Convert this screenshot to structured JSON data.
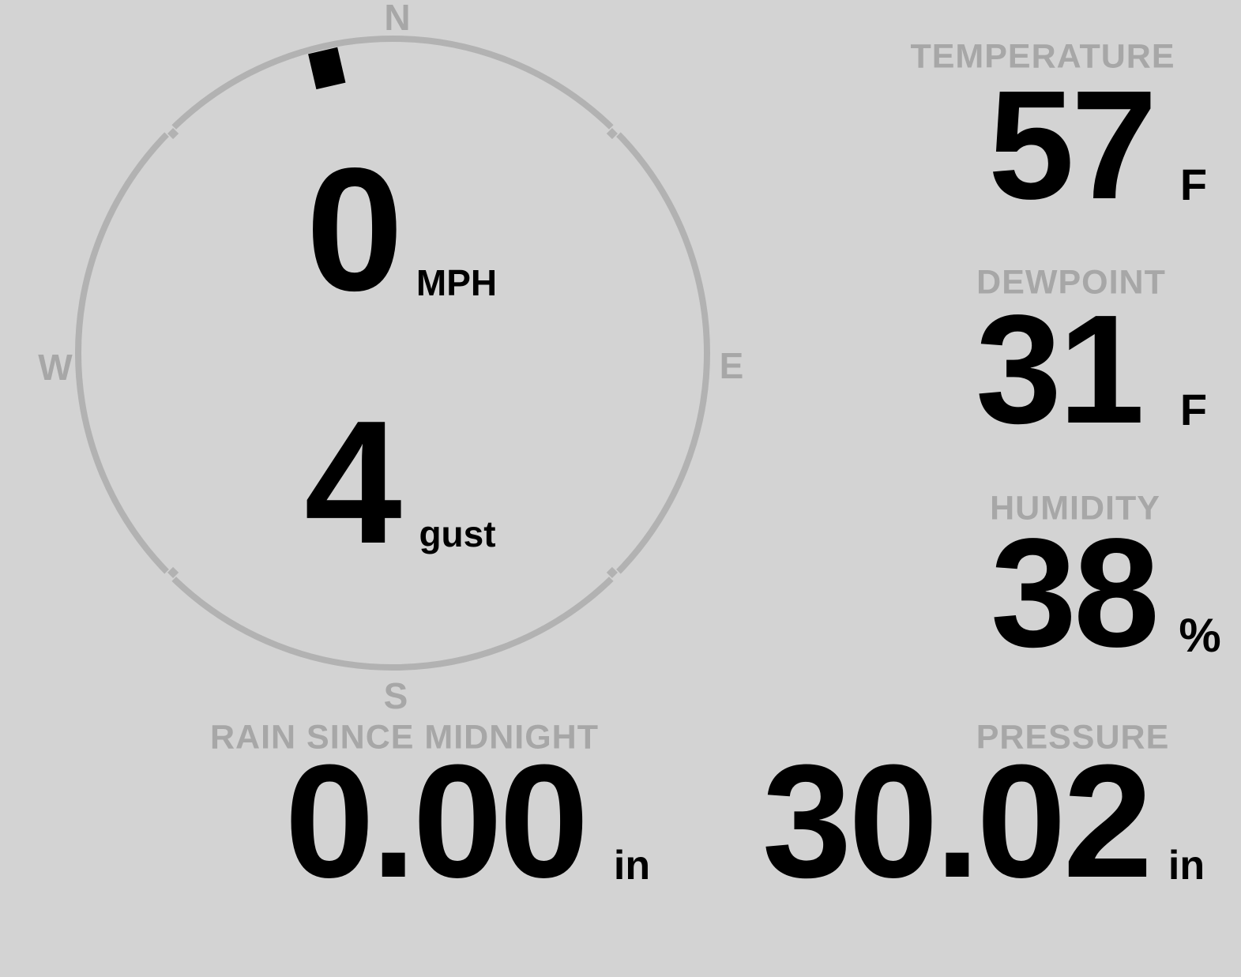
{
  "theme": {
    "background_color": "#d3d3d3",
    "label_color": "#a7a7a7",
    "ring_color": "#b2b2b2",
    "value_color": "#000000",
    "marker_color": "#000000"
  },
  "wind_gauge": {
    "compass_points": {
      "north": "N",
      "east": "E",
      "south": "S",
      "west": "W"
    },
    "direction_deg": 347,
    "speed": {
      "value": "0",
      "unit": "MPH"
    },
    "gust": {
      "value": "4",
      "unit": "gust"
    }
  },
  "readings": {
    "temperature": {
      "label": "TEMPERATURE",
      "value": "57",
      "unit": "F"
    },
    "dewpoint": {
      "label": "DEWPOINT",
      "value": "31",
      "unit": "F"
    },
    "humidity": {
      "label": "HUMIDITY",
      "value": "38",
      "unit": "%"
    },
    "rain_since_midnight": {
      "label": "RAIN SINCE MIDNIGHT",
      "value": "0.00",
      "unit": "in"
    },
    "pressure": {
      "label": "PRESSURE",
      "value": "30.02",
      "unit": "in"
    }
  }
}
